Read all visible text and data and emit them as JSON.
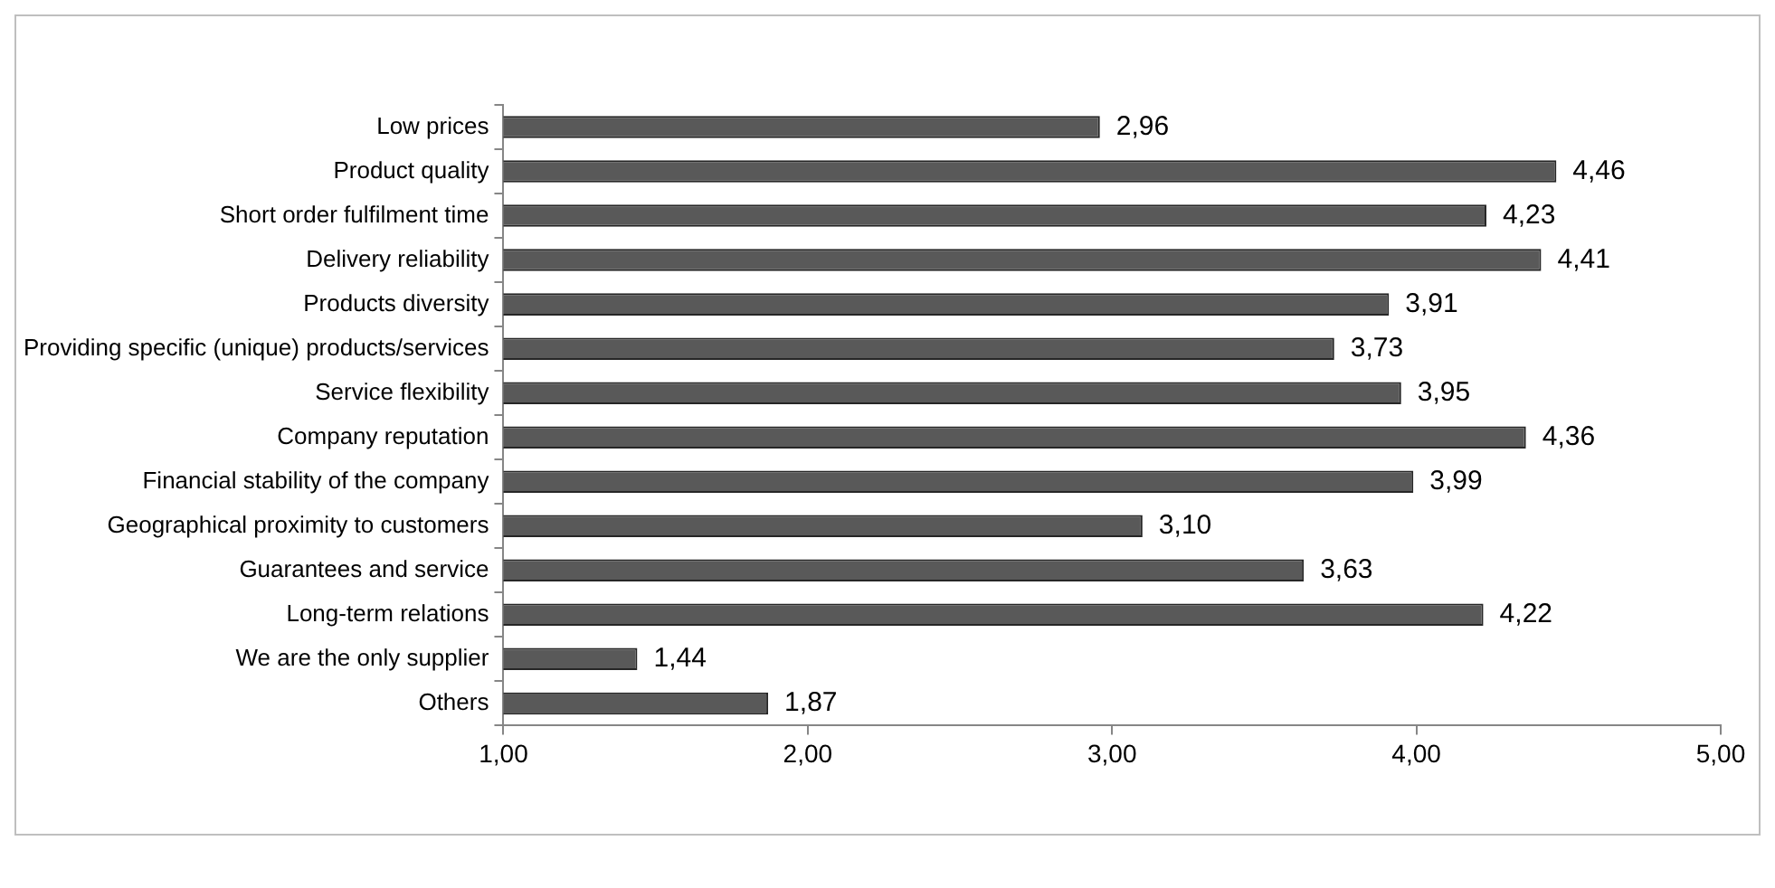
{
  "chart_data": {
    "type": "bar",
    "orientation": "horizontal",
    "categories": [
      "Low prices",
      "Product quality",
      "Short order fulfilment time",
      "Delivery reliability",
      "Products diversity",
      "Providing specific (unique) products/services",
      "Service flexibility",
      "Company reputation",
      "Financial stability of the company",
      "Geographical proximity to customers",
      "Guarantees and service",
      "Long-term relations",
      "We are the only supplier",
      "Others"
    ],
    "values": [
      2.96,
      4.46,
      4.23,
      4.41,
      3.91,
      3.73,
      3.95,
      4.36,
      3.99,
      3.1,
      3.63,
      4.22,
      1.44,
      1.87
    ],
    "value_labels": [
      "2,96",
      "4,46",
      "4,23",
      "4,41",
      "3,91",
      "3,73",
      "3,95",
      "4,36",
      "3,99",
      "3,10",
      "3,63",
      "4,22",
      "1,44",
      "1,87"
    ],
    "color": "#595959",
    "xlim": [
      1,
      5
    ],
    "xticks": [
      {
        "value": 1,
        "label": "1,00"
      },
      {
        "value": 2,
        "label": "2,00"
      },
      {
        "value": 3,
        "label": "3,00"
      },
      {
        "value": 4,
        "label": "4,00"
      },
      {
        "value": 5,
        "label": "5,00"
      }
    ],
    "grid": false,
    "legend": false
  }
}
